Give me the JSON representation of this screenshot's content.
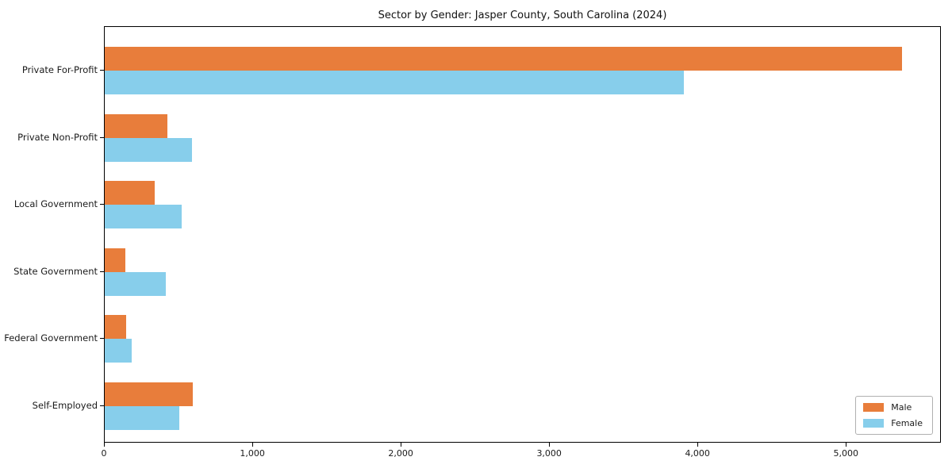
{
  "chart_data": {
    "type": "bar",
    "orientation": "horizontal",
    "title": "Sector by Gender: Jasper County, South Carolina (2024)",
    "xlabel": "",
    "ylabel": "",
    "categories": [
      "Private For-Profit",
      "Private Non-Profit",
      "Local Government",
      "State Government",
      "Federal Government",
      "Self-Employed"
    ],
    "series": [
      {
        "name": "Male",
        "color": "#e87d3b",
        "values": [
          5370,
          420,
          335,
          140,
          145,
          595
        ]
      },
      {
        "name": "Female",
        "color": "#87ceeb",
        "values": [
          3900,
          590,
          520,
          410,
          180,
          500
        ]
      }
    ],
    "xlim": [
      0,
      5640
    ],
    "xticks": [
      0,
      1000,
      2000,
      3000,
      4000,
      5000
    ],
    "xtick_labels": [
      "0",
      "1,000",
      "2,000",
      "3,000",
      "4,000",
      "5,000"
    ],
    "grid": false,
    "legend_position": "lower right",
    "axis_color": "#000000"
  }
}
